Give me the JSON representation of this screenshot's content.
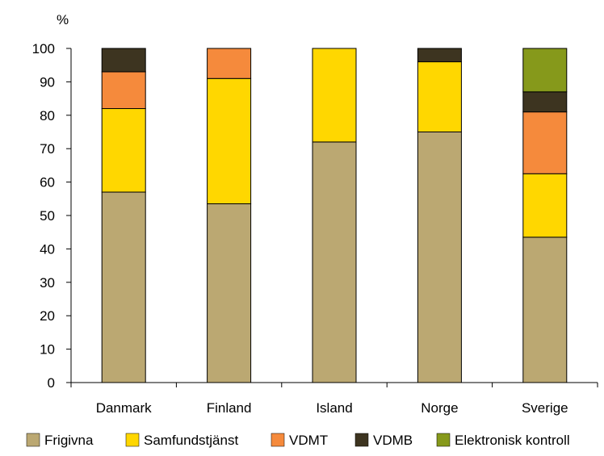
{
  "chart_data": {
    "type": "bar",
    "stacked": true,
    "unit_label": "%",
    "categories": [
      "Danmark",
      "Finland",
      "Island",
      "Norge",
      "Sverige"
    ],
    "series": [
      {
        "name": "Frigivna",
        "color": "#BBA872",
        "values": [
          57,
          53.5,
          72,
          75,
          43.5
        ]
      },
      {
        "name": "Samfundstjänst",
        "color": "#FFD700",
        "values": [
          25,
          37.5,
          28,
          21,
          19
        ]
      },
      {
        "name": "VDMT",
        "color": "#F58A3C",
        "values": [
          11,
          9,
          0,
          0,
          18.5
        ]
      },
      {
        "name": "VDMB",
        "color": "#3D3420",
        "values": [
          7,
          0,
          0,
          4,
          6
        ]
      },
      {
        "name": "Elektronisk kontroll",
        "color": "#86991B",
        "values": [
          0,
          0,
          0,
          0,
          13
        ]
      }
    ],
    "ylim": [
      0,
      100
    ],
    "yticks": [
      0,
      10,
      20,
      30,
      40,
      50,
      60,
      70,
      80,
      90,
      100
    ],
    "grid": false,
    "legend": "bottom",
    "title": "",
    "xlabel": "",
    "ylabel": ""
  }
}
